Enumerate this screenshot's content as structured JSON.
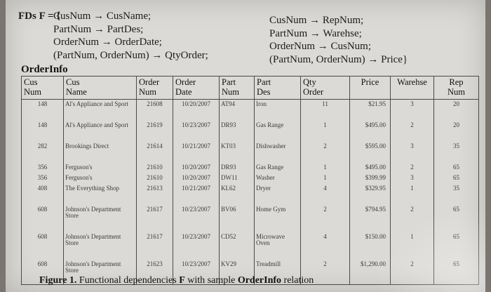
{
  "fds": {
    "lead": "FDs F = {",
    "col1": [
      "CusNum → CusName;",
      "PartNum → PartDes;",
      "OrderNum → OrderDate;",
      "(PartNum, OrderNum) → QtyOrder;"
    ],
    "col2": [
      "CusNum → RepNum;",
      "PartNum → Warehse;",
      "OrderNum → CusNum;",
      "(PartNum, OrderNum) → Price}"
    ]
  },
  "table": {
    "title": "OrderInfo",
    "headers": [
      [
        "Cus",
        "Num"
      ],
      [
        "Cus",
        "Name"
      ],
      [
        "Order",
        "Num"
      ],
      [
        "Order",
        "Date"
      ],
      [
        "Part",
        "Num"
      ],
      [
        "Part",
        "Des"
      ],
      [
        "Qty",
        "Order"
      ],
      [
        "Price",
        ""
      ],
      [
        "Warehse",
        ""
      ],
      [
        "Rep",
        "Num"
      ]
    ],
    "rows": [
      [
        "148",
        "Al's Appliance and Sport",
        "21608",
        "10/20/2007",
        "AT94",
        "Iron",
        "11",
        "$21.95",
        "3",
        "20"
      ],
      [
        "148",
        "Al's Appliance and Sport",
        "21619",
        "10/23/2007",
        "DR93",
        "Gas Range",
        "1",
        "$495.00",
        "2",
        "20"
      ],
      [
        "282",
        "Brookings Direct",
        "21614",
        "10/21/2007",
        "KT03",
        "Dishwasher",
        "2",
        "$595.00",
        "3",
        "35"
      ],
      [
        "356",
        "Ferguson's",
        "21610",
        "10/20/2007",
        "DR93",
        "Gas Range",
        "1",
        "$495.00",
        "2",
        "65"
      ],
      [
        "356",
        "Ferguson's",
        "21610",
        "10/20/2007",
        "DW11",
        "Washer",
        "1",
        "$399.99",
        "3",
        "65"
      ],
      [
        "408",
        "The Everything Shop",
        "21613",
        "10/21/2007",
        "KL62",
        "Dryer",
        "4",
        "$329.95",
        "1",
        "35"
      ],
      [
        "608",
        "Johnson's Department Store",
        "21617",
        "10/23/2007",
        "BV06",
        "Home Gym",
        "2",
        "$794.95",
        "2",
        "65"
      ],
      [
        "608",
        "Johnson's Department Store",
        "21617",
        "10/23/2007",
        "CD52",
        "Microwave Oven",
        "4",
        "$150.00",
        "1",
        "65"
      ],
      [
        "608",
        "Johnson's Department Store",
        "21623",
        "10/23/2007",
        "KV29",
        "Treadmill",
        "2",
        "$1,290.00",
        "2",
        "65"
      ]
    ]
  },
  "caption": {
    "label": "Figure 1.",
    "text_before": " Functional dependencies ",
    "bold_f": "F",
    "text_mid": " with sample ",
    "bold_rel": "OrderInfo",
    "text_after": " relation"
  }
}
